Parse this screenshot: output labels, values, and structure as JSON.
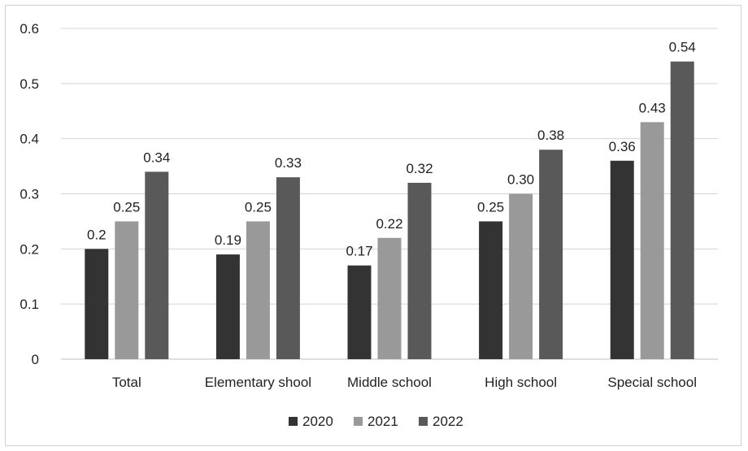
{
  "chart_data": {
    "type": "bar",
    "title": "",
    "xlabel": "",
    "ylabel": "",
    "categories": [
      "Total",
      "Elementary shool",
      "Middle school",
      "High school",
      "Special school"
    ],
    "series": [
      {
        "name": "2020",
        "color": "#333333",
        "values": [
          0.2,
          0.19,
          0.17,
          0.25,
          0.36
        ],
        "labels": [
          "0.2",
          "0.19",
          "0.17",
          "0.25",
          "0.36"
        ]
      },
      {
        "name": "2021",
        "color": "#999999",
        "values": [
          0.25,
          0.25,
          0.22,
          0.3,
          0.43
        ],
        "labels": [
          "0.25",
          "0.25",
          "0.22",
          "0.30",
          "0.43"
        ]
      },
      {
        "name": "2022",
        "color": "#595959",
        "values": [
          0.34,
          0.33,
          0.32,
          0.38,
          0.54
        ],
        "labels": [
          "0.34",
          "0.33",
          "0.32",
          "0.38",
          "0.54"
        ]
      }
    ],
    "ylim": [
      0,
      0.6
    ],
    "yticks": [
      "0",
      "0.1",
      "0.2",
      "0.3",
      "0.4",
      "0.5",
      "0.6"
    ],
    "grid": true,
    "legend_position": "bottom"
  }
}
